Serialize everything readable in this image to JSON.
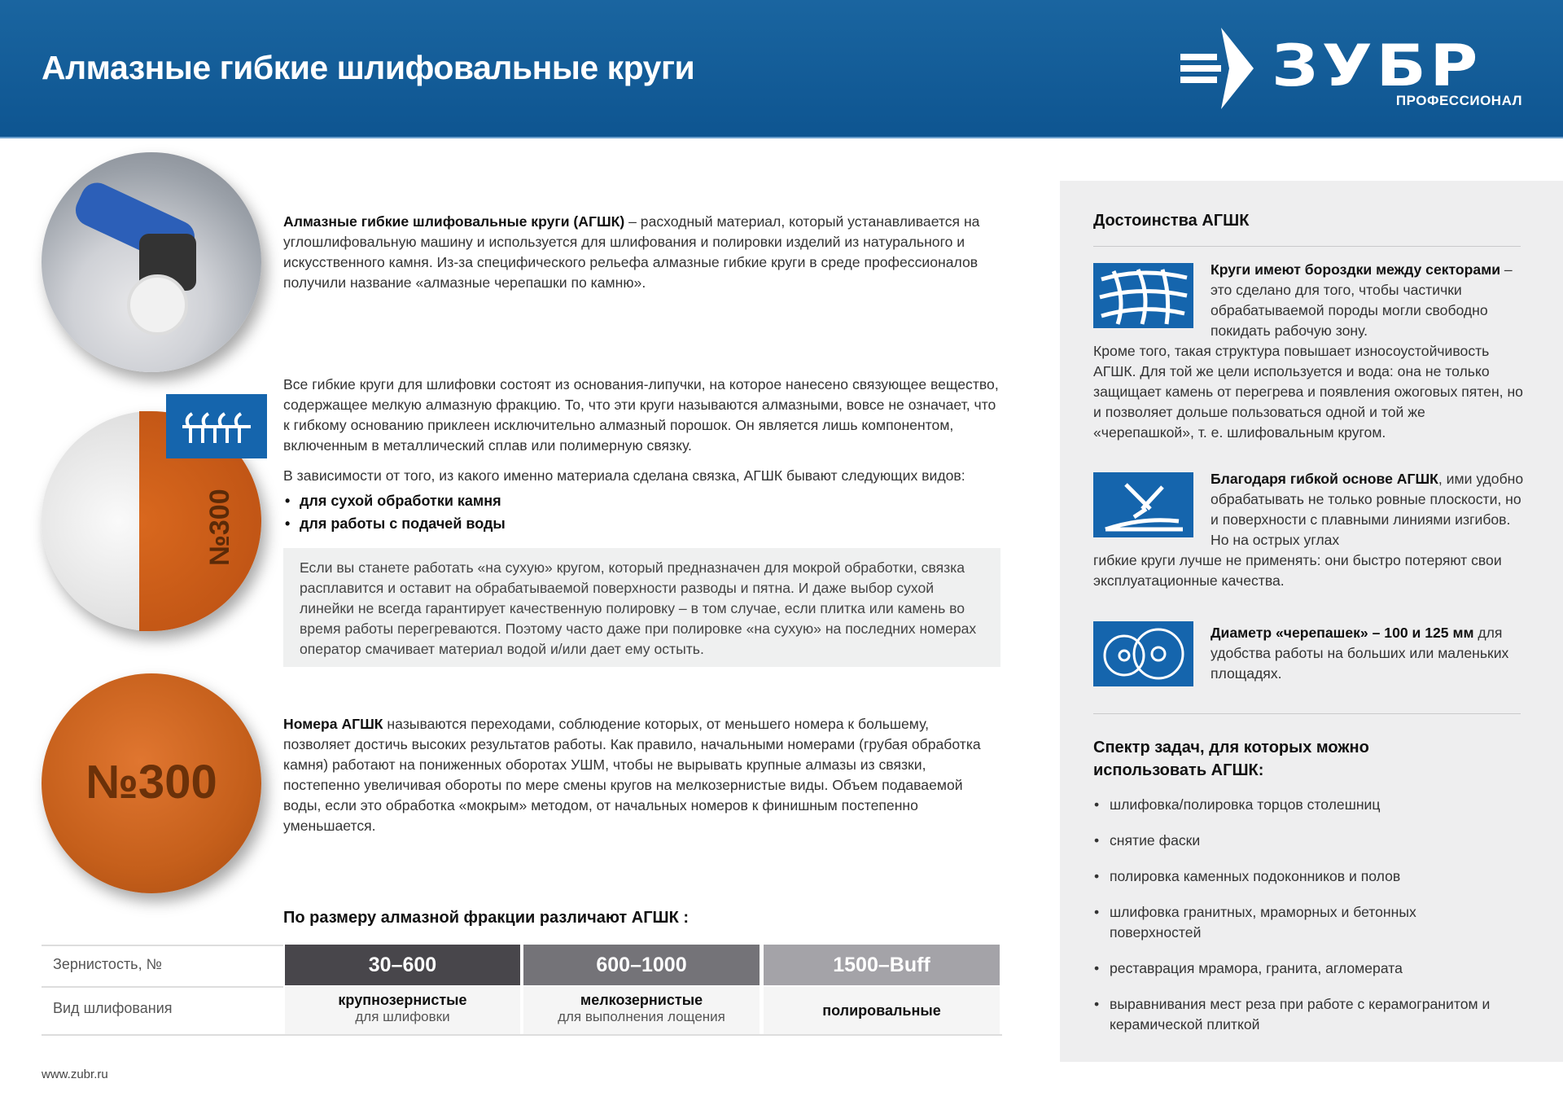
{
  "header": {
    "title": "Алмазные гибкие шлифовальные круги",
    "logo_text": "ЗУБР",
    "logo_sub": "ПРОФЕССИОНАЛ"
  },
  "intro": {
    "bold": "Алмазные гибкие шлифовальные круги (АГШК)",
    "text": " – расходный материал, который устанавливается на углошлифовальную машину и используется для шлифования и полировки изделий из натурального и искусственного камня. Из-за специфического рельефа алмазные гибкие круги в среде профессионалов получили название «алмазные черепашки по камню»."
  },
  "structure": {
    "p1": "Все гибкие круги для шлифовки состоят из основания-липучки, на которое нанесено связующее вещество, содержащее мелкую алмазную фракцию. То, что эти круги называются алмазными, вовсе не означает, что к гибкому основанию приклеен исключительно алмазный порошок. Он является лишь компонентом, включенным в металлический сплав или полимерную связку.",
    "p2": "В зависимости от того, из какого именно материала сделана связка, АГШК бывают следующих видов:",
    "types": [
      "для сухой обработки камня",
      "для работы с подачей воды"
    ],
    "note": "Если вы станете работать «на сухую» кругом, который предназначен для мокрой обработки, связка расплавится и оставит на обрабатываемой поверхности разводы и пятна. И даже выбор сухой линейки не всегда гарантирует качественную полировку – в том случае, если плитка или камень во время работы перегреваются. Поэтому часто даже при полировке «на сухую» на последних номерах оператор смачивает материал водой и/или дает ему остыть.",
    "disc_label": "№300"
  },
  "numbers": {
    "bold": "Номера АГШК",
    "text": " называются переходами, соблюдение которых, от меньшего номера к большему, позволяет достичь высоких результатов работы. Как правило, начальными номерами (грубая обработка камня) работают на пониженных оборотах УШМ, чтобы не вырывать крупные алмазы из связки, постепенно увеличивая обороты по мере смены кругов на мелкозернистые виды. Объем подаваемой воды, если это обработка «мокрым» методом, от начальных номеров к финишным постепенно уменьшается.",
    "disc_label": "№300"
  },
  "table": {
    "heading": "По размеру алмазной фракции различают АГШК :",
    "row1_label": "Зернистость, №",
    "row2_label": "Вид шлифования",
    "columns": [
      {
        "grit": "30–600",
        "type": "крупнозернистые",
        "sub": "для шлифовки",
        "color": "#48464b"
      },
      {
        "grit": "600–1000",
        "type": "мелкозернистые",
        "sub": "для выполнения лощения",
        "color": "#747378"
      },
      {
        "grit": "1500–Buff",
        "type": "полировальные",
        "sub": "",
        "color": "#a4a3a8"
      }
    ]
  },
  "footer": {
    "url": "www.zubr.ru"
  },
  "advantages": {
    "heading": "Достоинства АГШК",
    "items": [
      {
        "icon": "grid-grooves-icon",
        "bold": "Круги имеют бороздки между секторами",
        "text": " – это сделано для того, чтобы частички обрабатываемой породы могли свободно покидать рабочую зону.",
        "extra": "Кроме того, такая структура повышает износоустойчивость АГШК. Для той же цели используется и вода: она не только защищает камень от перегрева и появления ожоговых пятен, но и позволяет дольше пользоваться одной и той же «черепашкой», т. е. шлифовальным кругом."
      },
      {
        "icon": "flexible-base-icon",
        "bold": "Благодаря гибкой основе АГШК",
        "text": ", ими удобно обрабатывать не только ровные плоскости, но и поверхности с плавными линиями изгибов. Но на острых углах",
        "extra": "гибкие круги лучше не применять: они быстро потеряют свои эксплуатационные качества."
      },
      {
        "icon": "two-discs-icon",
        "bold": "Диаметр «черепашек» – 100 и 125 мм",
        "text": " для удобства работы на больших или маленьких площадях.",
        "extra": ""
      }
    ]
  },
  "tasks": {
    "heading": "Спектр задач, для которых можно использовать АГШК:",
    "items": [
      "шлифовка/полировка торцов столешниц",
      "снятие фаски",
      "полировка каменных подоконников и полов",
      "шлифовка гранитных, мраморных и бетонных поверхностей",
      "реставрация мрамора, гранита, агломерата",
      "выравнивания мест реза при работе с керамогранитом и керамической плиткой"
    ]
  }
}
